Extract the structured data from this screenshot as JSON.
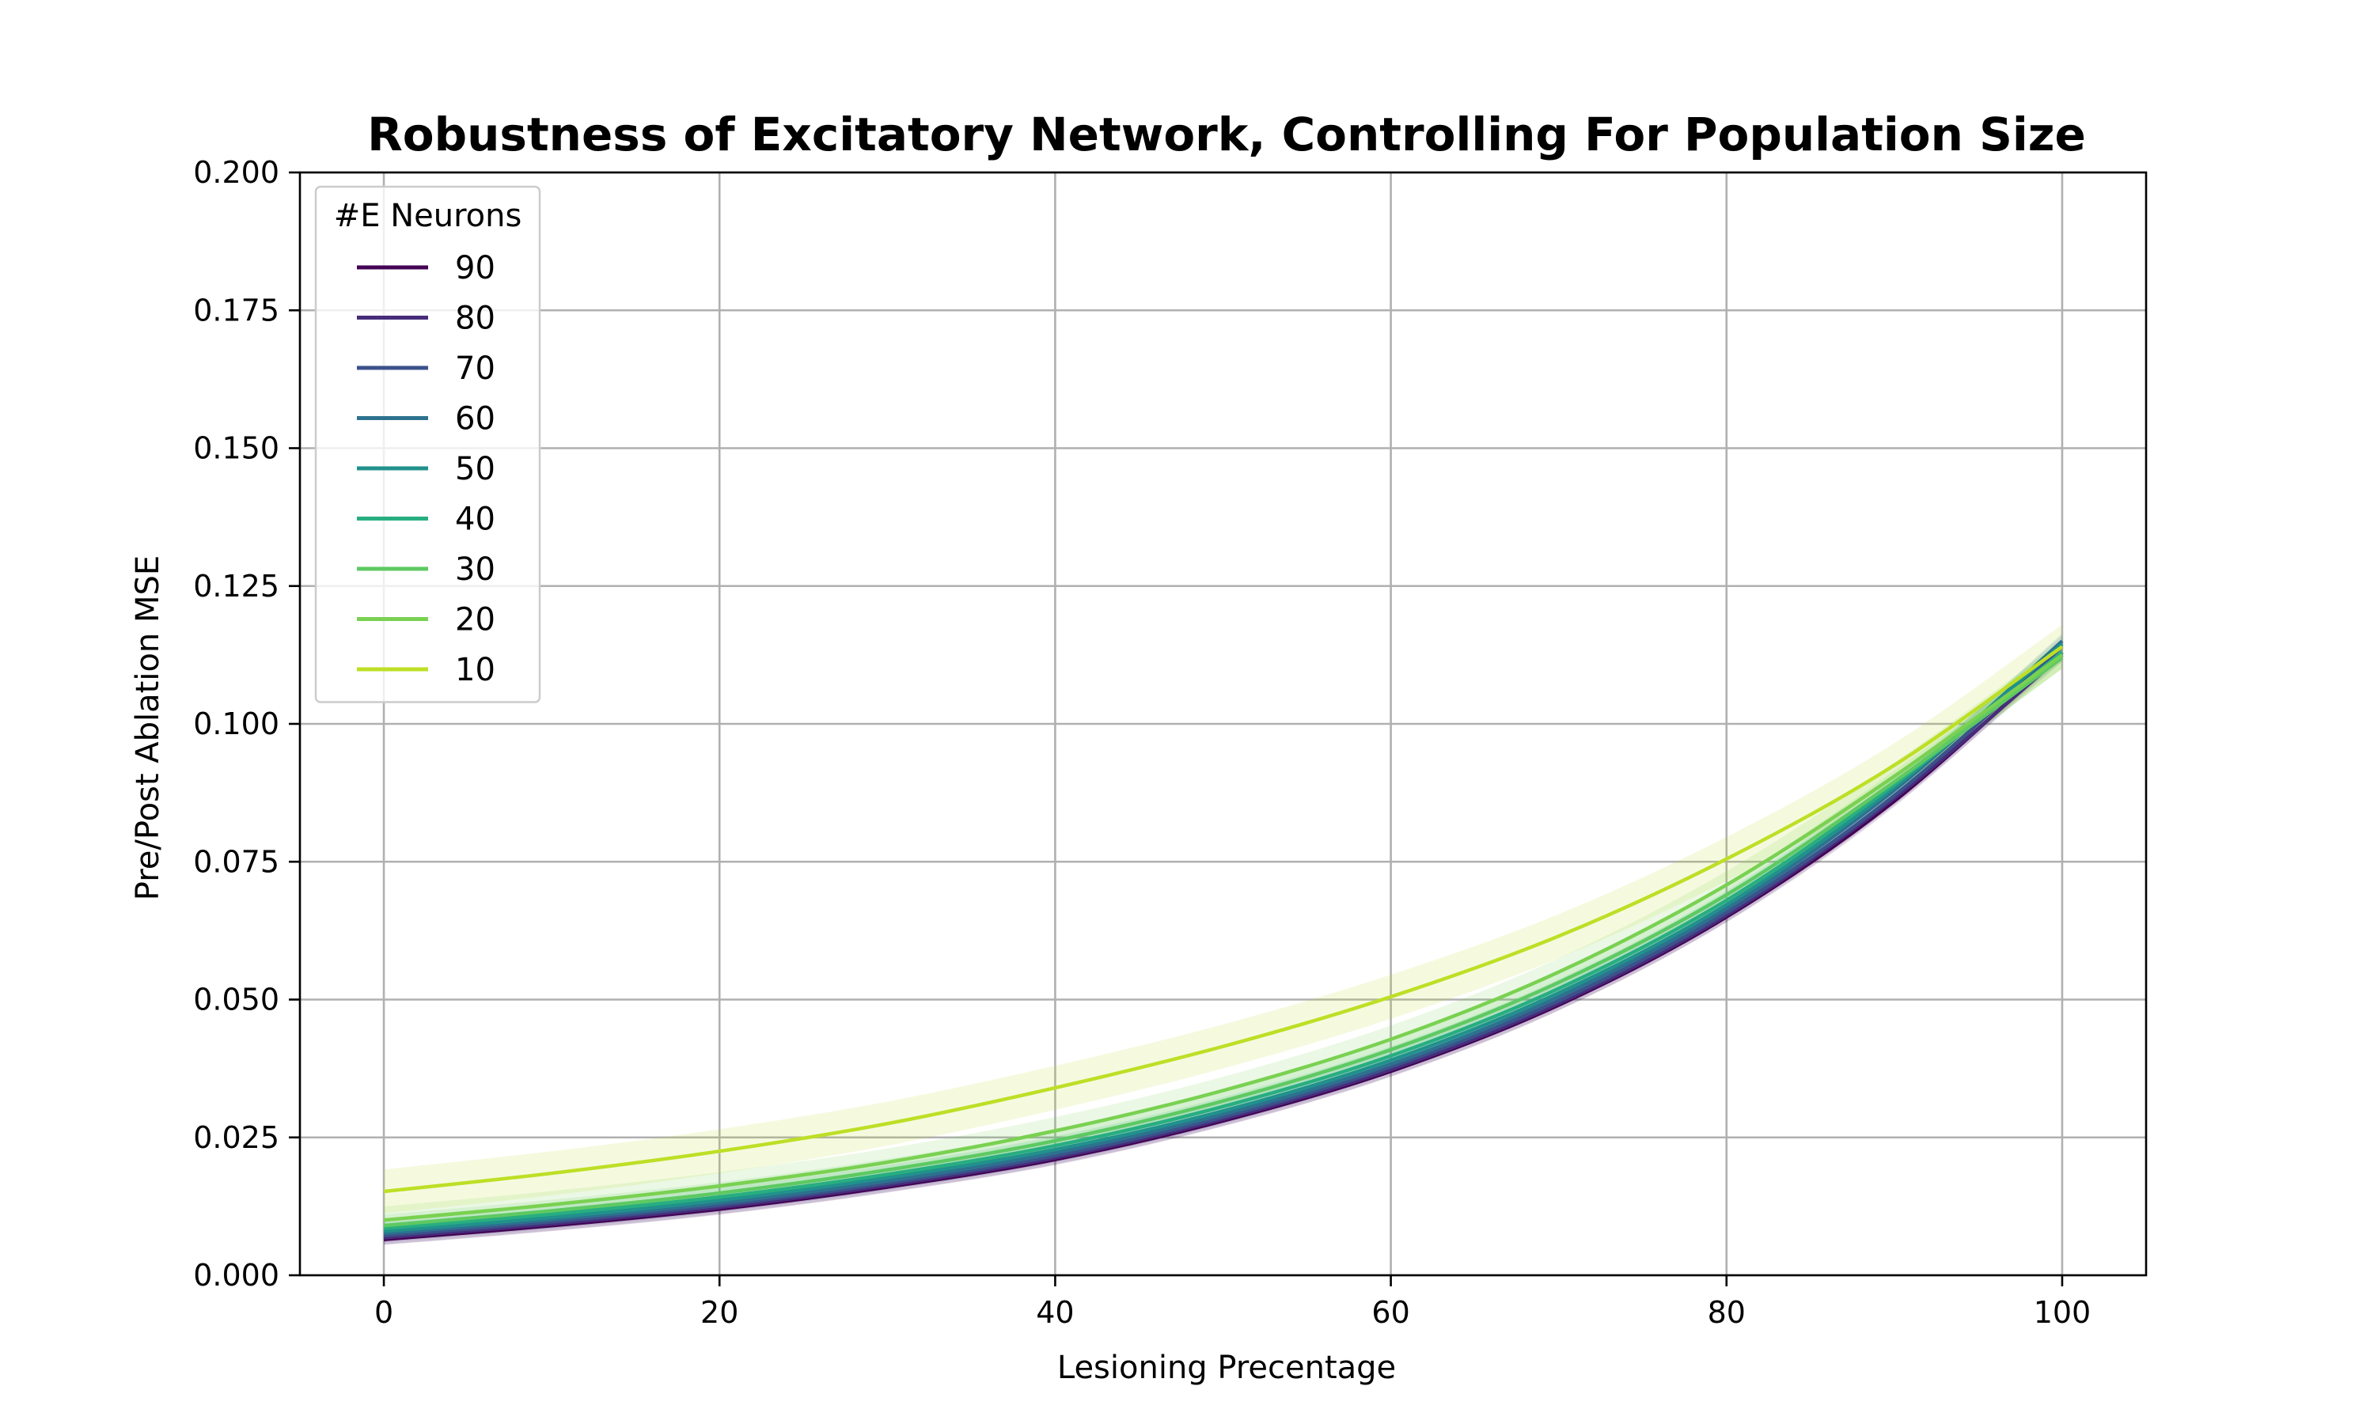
{
  "chart_data": {
    "type": "line",
    "title": "Robustness of Excitatory Network, Controlling For Population Size",
    "xlabel": "Lesioning Precentage",
    "ylabel": "Pre/Post Ablation MSE",
    "xlim": [
      -5,
      105
    ],
    "ylim": [
      0,
      0.2
    ],
    "xticks": [
      0,
      20,
      40,
      60,
      80,
      100
    ],
    "yticks": [
      0.0,
      0.025,
      0.05,
      0.075,
      0.1,
      0.125,
      0.15,
      0.175,
      0.2
    ],
    "xtick_labels": [
      "0",
      "20",
      "40",
      "60",
      "80",
      "100"
    ],
    "ytick_labels": [
      "0.000",
      "0.025",
      "0.050",
      "0.075",
      "0.100",
      "0.125",
      "0.150",
      "0.175",
      "0.200"
    ],
    "grid": true,
    "legend_title": "#E Neurons",
    "legend_position": "upper-left",
    "x": [
      0,
      10,
      20,
      30,
      40,
      50,
      60,
      70,
      80,
      90,
      100
    ],
    "series": [
      {
        "name": "90",
        "color": "#440154",
        "values": [
          0.0065,
          0.009,
          0.012,
          0.016,
          0.021,
          0.028,
          0.037,
          0.049,
          0.065,
          0.086,
          0.113
        ],
        "band": 0.001
      },
      {
        "name": "80",
        "color": "#472d7b",
        "values": [
          0.0068,
          0.0093,
          0.0123,
          0.0163,
          0.0213,
          0.0283,
          0.0373,
          0.0493,
          0.0653,
          0.0865,
          0.1125
        ],
        "band": 0.0012
      },
      {
        "name": "70",
        "color": "#3b528b",
        "values": [
          0.0072,
          0.0097,
          0.0127,
          0.0167,
          0.0217,
          0.0287,
          0.0378,
          0.0498,
          0.0658,
          0.087,
          0.114
        ],
        "band": 0.0012
      },
      {
        "name": "60",
        "color": "#2c728e",
        "values": [
          0.0076,
          0.0101,
          0.0131,
          0.0171,
          0.0222,
          0.0292,
          0.0383,
          0.0505,
          0.0665,
          0.088,
          0.115
        ],
        "band": 0.0014
      },
      {
        "name": "50",
        "color": "#21918c",
        "values": [
          0.008,
          0.0105,
          0.0136,
          0.0177,
          0.0228,
          0.0298,
          0.039,
          0.0512,
          0.0672,
          0.0885,
          0.1145
        ],
        "band": 0.0015
      },
      {
        "name": "40",
        "color": "#28ae80",
        "values": [
          0.0085,
          0.0111,
          0.0142,
          0.0183,
          0.0235,
          0.0306,
          0.0398,
          0.052,
          0.068,
          0.089,
          0.113
        ],
        "band": 0.0017
      },
      {
        "name": "30",
        "color": "#5ec962",
        "values": [
          0.009,
          0.0117,
          0.0149,
          0.0191,
          0.0244,
          0.0316,
          0.0409,
          0.0531,
          0.069,
          0.0895,
          0.112
        ],
        "band": 0.002
      },
      {
        "name": "20",
        "color": "#79d151",
        "values": [
          0.01,
          0.0128,
          0.0162,
          0.0205,
          0.0262,
          0.0335,
          0.0428,
          0.055,
          0.0708,
          0.0905,
          0.1125
        ],
        "band": 0.0025
      },
      {
        "name": "10",
        "color": "#bddf26",
        "values": [
          0.0152,
          0.0185,
          0.0225,
          0.0275,
          0.034,
          0.0415,
          0.0505,
          0.0615,
          0.0755,
          0.0925,
          0.114
        ],
        "band": 0.004
      }
    ]
  }
}
